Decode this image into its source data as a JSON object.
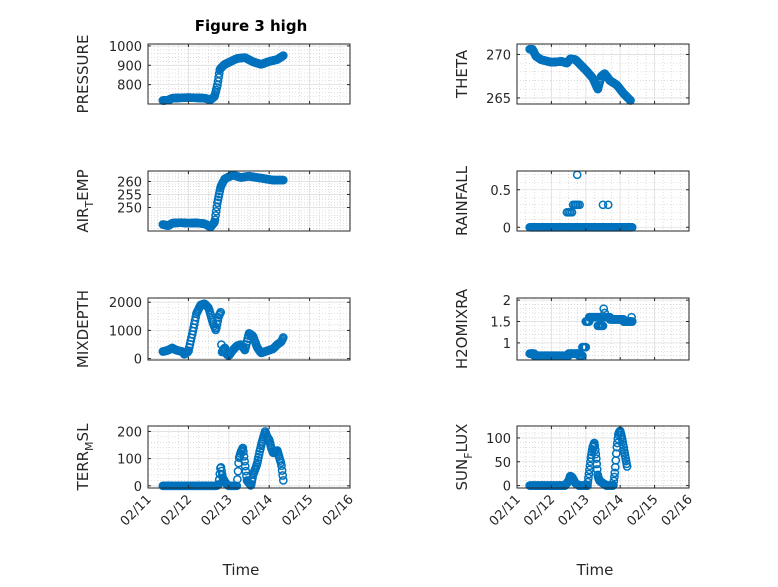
{
  "figure": {
    "title": "Figure 3 high",
    "marker_color": "#0072BD",
    "xlabel": "Time",
    "x_tick_labels": [
      "02/11",
      "02/12",
      "02/13",
      "02/14",
      "02/15",
      "02/16"
    ]
  },
  "chart_data": [
    {
      "type": "scatter",
      "ylabel": "PRESSURE",
      "sub": "",
      "ylim": [
        700,
        1010
      ],
      "yticks": [
        800,
        900,
        1000
      ],
      "ytick_labels": [
        "800",
        "900",
        "1000"
      ],
      "xlim": [
        0,
        5
      ],
      "grid": true,
      "xticklabels_shown": false,
      "keypoints": [
        [
          0.37,
          718
        ],
        [
          0.5,
          720
        ],
        [
          0.6,
          730
        ],
        [
          0.8,
          732
        ],
        [
          1.0,
          733
        ],
        [
          1.2,
          732
        ],
        [
          1.4,
          730
        ],
        [
          1.55,
          722
        ],
        [
          1.65,
          740
        ],
        [
          1.72,
          800
        ],
        [
          1.78,
          880
        ],
        [
          1.9,
          905
        ],
        [
          2.0,
          915
        ],
        [
          2.1,
          925
        ],
        [
          2.2,
          935
        ],
        [
          2.4,
          940
        ],
        [
          2.6,
          918
        ],
        [
          2.8,
          905
        ],
        [
          3.0,
          920
        ],
        [
          3.2,
          930
        ],
        [
          3.35,
          950
        ]
      ],
      "n": 200
    },
    {
      "type": "scatter",
      "ylabel": "THETA",
      "sub": "",
      "ylim": [
        264.3,
        271.2
      ],
      "yticks": [
        265,
        270
      ],
      "ytick_labels": [
        "265",
        "270"
      ],
      "xlim": [
        0,
        5
      ],
      "grid": true,
      "xticklabels_shown": false,
      "keypoints": [
        [
          0.37,
          270.6
        ],
        [
          0.45,
          270.6
        ],
        [
          0.55,
          269.8
        ],
        [
          0.7,
          269.4
        ],
        [
          1.0,
          269.1
        ],
        [
          1.3,
          269.2
        ],
        [
          1.45,
          269.0
        ],
        [
          1.55,
          269.5
        ],
        [
          1.7,
          269.4
        ],
        [
          1.85,
          268.8
        ],
        [
          2.0,
          268.2
        ],
        [
          2.2,
          267.3
        ],
        [
          2.35,
          266.0
        ],
        [
          2.45,
          267.5
        ],
        [
          2.55,
          267.8
        ],
        [
          2.7,
          267.0
        ],
        [
          2.9,
          266.5
        ],
        [
          3.1,
          265.5
        ],
        [
          3.3,
          264.7
        ]
      ],
      "n": 180
    },
    {
      "type": "scatter",
      "ylabel": "AIR",
      "sub": "T",
      "sup_rest": "EMP",
      "ylim": [
        241,
        264
      ],
      "yticks": [
        250,
        255,
        260
      ],
      "ytick_labels": [
        "250",
        "255",
        "260"
      ],
      "xlim": [
        0,
        5
      ],
      "grid": true,
      "xticklabels_shown": false,
      "keypoints": [
        [
          0.37,
          243.5
        ],
        [
          0.5,
          243.0
        ],
        [
          0.6,
          244.0
        ],
        [
          0.8,
          244.2
        ],
        [
          1.0,
          244.0
        ],
        [
          1.2,
          244.1
        ],
        [
          1.4,
          243.8
        ],
        [
          1.55,
          242.5
        ],
        [
          1.65,
          244.5
        ],
        [
          1.72,
          252
        ],
        [
          1.8,
          258
        ],
        [
          1.9,
          261
        ],
        [
          2.1,
          262.5
        ],
        [
          2.3,
          261.5
        ],
        [
          2.5,
          262
        ],
        [
          2.7,
          261.5
        ],
        [
          2.9,
          261
        ],
        [
          3.1,
          260.5
        ],
        [
          3.35,
          260.5
        ]
      ],
      "n": 200
    },
    {
      "type": "scatter",
      "ylabel": "RAINFALL",
      "sub": "",
      "ylim": [
        -0.05,
        0.75
      ],
      "yticks": [
        0,
        0.5
      ],
      "ytick_labels": [
        "0",
        "0.5"
      ],
      "xlim": [
        0,
        5
      ],
      "grid": true,
      "xticklabels_shown": false,
      "points": [
        [
          1.45,
          0.2
        ],
        [
          1.5,
          0.2
        ],
        [
          1.55,
          0.2
        ],
        [
          1.6,
          0.2
        ],
        [
          1.63,
          0.3
        ],
        [
          1.68,
          0.3
        ],
        [
          1.72,
          0.3
        ],
        [
          1.77,
          0.3
        ],
        [
          1.82,
          0.3
        ],
        [
          1.75,
          0.7
        ],
        [
          1.5,
          0.0
        ],
        [
          1.58,
          0.0
        ],
        [
          2.5,
          0.3
        ],
        [
          2.65,
          0.3
        ]
      ],
      "zero_range": [
        0.37,
        3.35
      ],
      "n": 160
    },
    {
      "type": "scatter",
      "ylabel": "MIXDEPTH",
      "sub": "",
      "ylim": [
        -50,
        2150
      ],
      "yticks": [
        0,
        1000,
        2000
      ],
      "ytick_labels": [
        "0",
        "1000",
        "2000"
      ],
      "xlim": [
        0,
        5
      ],
      "grid": true,
      "xticklabels_shown": false,
      "keypoints": [
        [
          0.37,
          250
        ],
        [
          0.5,
          300
        ],
        [
          0.6,
          380
        ],
        [
          0.7,
          300
        ],
        [
          0.85,
          250
        ],
        [
          0.9,
          150
        ],
        [
          1.0,
          250
        ],
        [
          1.1,
          900
        ],
        [
          1.2,
          1600
        ],
        [
          1.3,
          1900
        ],
        [
          1.4,
          1950
        ],
        [
          1.5,
          1800
        ],
        [
          1.6,
          1300
        ],
        [
          1.68,
          1000
        ],
        [
          1.75,
          1500
        ],
        [
          1.8,
          1650
        ],
        [
          1.82,
          200
        ],
        [
          1.9,
          400
        ],
        [
          1.95,
          150
        ],
        [
          2.0,
          100
        ],
        [
          2.1,
          300
        ],
        [
          2.2,
          450
        ],
        [
          2.3,
          500
        ],
        [
          2.4,
          300
        ],
        [
          2.5,
          900
        ],
        [
          2.6,
          800
        ],
        [
          2.7,
          400
        ],
        [
          2.8,
          200
        ],
        [
          2.9,
          250
        ],
        [
          3.0,
          300
        ],
        [
          3.1,
          350
        ],
        [
          3.2,
          500
        ],
        [
          3.3,
          600
        ],
        [
          3.35,
          750
        ]
      ],
      "n": 170
    },
    {
      "type": "scatter",
      "ylabel": "H2OMIXRA",
      "sub": "",
      "ylim": [
        0.6,
        2.05
      ],
      "yticks": [
        1,
        1.5,
        2
      ],
      "ytick_labels": [
        "1",
        "1.5",
        "2"
      ],
      "xlim": [
        0,
        5
      ],
      "grid": true,
      "xticklabels_shown": false,
      "points": [],
      "step_segments": [
        [
          0.37,
          0.5,
          0.75
        ],
        [
          0.5,
          1.5,
          0.7
        ],
        [
          1.5,
          1.8,
          0.75
        ],
        [
          1.8,
          1.9,
          0.7
        ],
        [
          1.9,
          2.0,
          0.9
        ],
        [
          2.0,
          2.1,
          1.5
        ],
        [
          2.1,
          2.5,
          1.6
        ],
        [
          2.35,
          2.5,
          1.4
        ],
        [
          2.5,
          2.7,
          1.6
        ],
        [
          2.7,
          3.1,
          1.55
        ],
        [
          3.1,
          3.35,
          1.5
        ]
      ],
      "extra_points": [
        [
          2.52,
          1.8
        ],
        [
          2.55,
          1.7
        ],
        [
          3.33,
          1.6
        ]
      ],
      "n": 190
    },
    {
      "type": "scatter",
      "ylabel": "TERR",
      "sub": "M",
      "sup_rest": "SL",
      "ylim": [
        -8,
        220
      ],
      "yticks": [
        0,
        100,
        200
      ],
      "ytick_labels": [
        "0",
        "100",
        "200"
      ],
      "xlim": [
        0,
        5
      ],
      "grid": true,
      "xticklabels_shown": true,
      "keypoints": [
        [
          0.37,
          0
        ],
        [
          1.7,
          0
        ],
        [
          1.75,
          5
        ],
        [
          1.8,
          75
        ],
        [
          1.85,
          30
        ],
        [
          1.9,
          15
        ],
        [
          1.95,
          5
        ],
        [
          2.0,
          0
        ],
        [
          2.2,
          0
        ],
        [
          2.25,
          100
        ],
        [
          2.3,
          125
        ],
        [
          2.35,
          140
        ],
        [
          2.4,
          80
        ],
        [
          2.45,
          20
        ],
        [
          2.5,
          10
        ],
        [
          2.55,
          0
        ],
        [
          2.6,
          40
        ],
        [
          2.7,
          80
        ],
        [
          2.8,
          150
        ],
        [
          2.9,
          200
        ],
        [
          2.95,
          180
        ],
        [
          3.0,
          170
        ],
        [
          3.05,
          140
        ],
        [
          3.1,
          120
        ],
        [
          3.2,
          130
        ],
        [
          3.3,
          80
        ],
        [
          3.35,
          20
        ]
      ],
      "n": 200
    },
    {
      "type": "scatter",
      "ylabel": "SUN",
      "sub": "F",
      "sup_rest": "LUX",
      "ylim": [
        -5,
        125
      ],
      "yticks": [
        0,
        50,
        100
      ],
      "ytick_labels": [
        "0",
        "50",
        "100"
      ],
      "xlim": [
        0,
        5
      ],
      "grid": true,
      "xticklabels_shown": true,
      "keypoints": [
        [
          0.37,
          0
        ],
        [
          1.4,
          0
        ],
        [
          1.5,
          10
        ],
        [
          1.55,
          20
        ],
        [
          1.6,
          18
        ],
        [
          1.7,
          5
        ],
        [
          1.8,
          0
        ],
        [
          2.05,
          0
        ],
        [
          2.1,
          30
        ],
        [
          2.15,
          60
        ],
        [
          2.2,
          80
        ],
        [
          2.25,
          90
        ],
        [
          2.3,
          60
        ],
        [
          2.35,
          20
        ],
        [
          2.4,
          10
        ],
        [
          2.5,
          5
        ],
        [
          2.6,
          0
        ],
        [
          2.8,
          0
        ],
        [
          2.85,
          30
        ],
        [
          2.9,
          80
        ],
        [
          2.95,
          110
        ],
        [
          3.0,
          115
        ],
        [
          3.05,
          100
        ],
        [
          3.1,
          80
        ],
        [
          3.15,
          60
        ],
        [
          3.2,
          40
        ]
      ],
      "n": 200
    }
  ]
}
